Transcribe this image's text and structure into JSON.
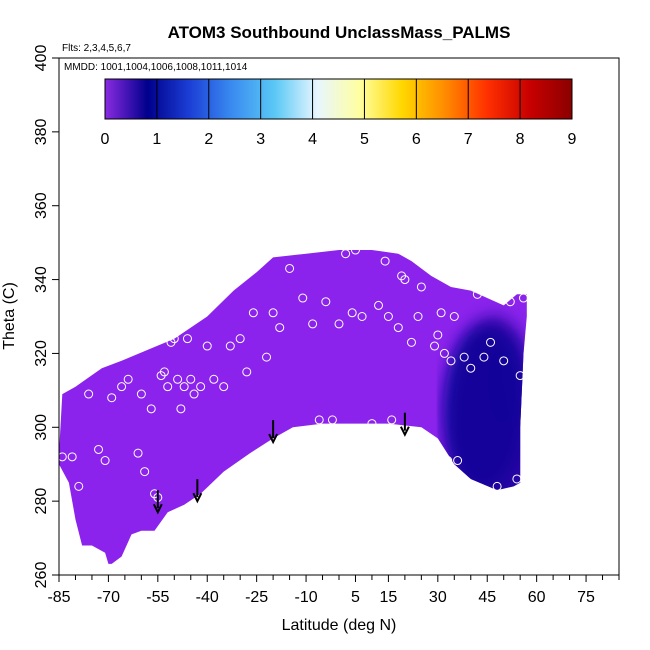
{
  "chart_data": {
    "type": "heatmap",
    "title": "ATOM3 Southbound UnclassMass_PALMS",
    "flights_note": "Flts: 2,3,4,5,6,7",
    "dates_note": "MMDD: 1001,1004,1006,1008,1011,1014",
    "xlabel": "Latitude (deg N)",
    "ylabel": "Theta (C)",
    "xlim": [
      -85,
      85
    ],
    "ylim": [
      260,
      400
    ],
    "x_ticks": [
      -85,
      -70,
      -55,
      -40,
      -25,
      -10,
      5,
      15,
      30,
      45,
      60,
      75
    ],
    "y_ticks": [
      260,
      280,
      300,
      320,
      340,
      360,
      380,
      400
    ],
    "colorbar": {
      "min": 0,
      "max": 9,
      "ticks": [
        0,
        1,
        2,
        3,
        4,
        5,
        6,
        7,
        8,
        9
      ],
      "colors": [
        "#8a2be2",
        "#00008b",
        "#1c3fd6",
        "#3a8cf0",
        "#5ac8f5",
        "#e8f6ff",
        "#ffffa0",
        "#ffd700",
        "#ff8c00",
        "#ff3000",
        "#c80000",
        "#8b0000"
      ]
    },
    "field_envelope": [
      [
        -85,
        293
      ],
      [
        -84,
        309
      ],
      [
        -80,
        311
      ],
      [
        -72,
        316
      ],
      [
        -66,
        318
      ],
      [
        -58,
        321
      ],
      [
        -50,
        324
      ],
      [
        -40,
        330
      ],
      [
        -32,
        337
      ],
      [
        -25,
        342
      ],
      [
        -20,
        346
      ],
      [
        -10,
        347
      ],
      [
        0,
        348
      ],
      [
        10,
        348
      ],
      [
        18,
        347
      ],
      [
        22,
        345
      ],
      [
        28,
        341
      ],
      [
        34,
        338
      ],
      [
        40,
        337
      ],
      [
        45,
        335
      ],
      [
        50,
        333
      ],
      [
        54,
        336
      ],
      [
        57,
        336
      ],
      [
        57,
        330
      ],
      [
        56,
        320
      ],
      [
        55,
        300
      ],
      [
        55,
        285
      ],
      [
        53,
        284
      ],
      [
        48,
        283
      ],
      [
        40,
        286
      ],
      [
        35,
        290
      ],
      [
        30,
        297
      ],
      [
        25,
        300
      ],
      [
        15,
        301
      ],
      [
        5,
        301
      ],
      [
        -5,
        301
      ],
      [
        -14,
        300
      ],
      [
        -20,
        297
      ],
      [
        -27,
        293
      ],
      [
        -35,
        288
      ],
      [
        -42,
        282
      ],
      [
        -47,
        279
      ],
      [
        -52,
        277
      ],
      [
        -56,
        272
      ],
      [
        -60,
        272
      ],
      [
        -63,
        271
      ],
      [
        -66,
        265
      ],
      [
        -69,
        263
      ],
      [
        -70,
        263
      ],
      [
        -71,
        266
      ],
      [
        -75,
        268
      ],
      [
        -78,
        268
      ],
      [
        -80,
        275
      ],
      [
        -82,
        285
      ],
      [
        -85,
        290
      ]
    ],
    "high_value_region": [
      {
        "x": 50,
        "y": 312,
        "value": 1.6,
        "rx": 5,
        "ry": 12
      },
      {
        "x": 44,
        "y": 305,
        "value": 1.0,
        "rx": 12,
        "ry": 22
      },
      {
        "x": 47,
        "y": 300,
        "value": 0.7,
        "rx": 14,
        "ry": 30
      }
    ],
    "observation_points": [
      [
        -84,
        292
      ],
      [
        -81,
        292
      ],
      [
        -79,
        284
      ],
      [
        -76,
        309
      ],
      [
        -73,
        294
      ],
      [
        -71,
        291
      ],
      [
        -69,
        308
      ],
      [
        -66,
        311
      ],
      [
        -64,
        313
      ],
      [
        -61,
        293
      ],
      [
        -60,
        309
      ],
      [
        -59,
        288
      ],
      [
        -57,
        305
      ],
      [
        -56,
        282
      ],
      [
        -55,
        281
      ],
      [
        -54,
        314
      ],
      [
        -53,
        315
      ],
      [
        -52,
        311
      ],
      [
        -51,
        323
      ],
      [
        -50,
        324
      ],
      [
        -49,
        313
      ],
      [
        -48,
        305
      ],
      [
        -47,
        311
      ],
      [
        -46,
        324
      ],
      [
        -45,
        313
      ],
      [
        -44,
        309
      ],
      [
        -42,
        311
      ],
      [
        -40,
        322
      ],
      [
        -38,
        313
      ],
      [
        -35,
        311
      ],
      [
        -33,
        322
      ],
      [
        -30,
        324
      ],
      [
        -28,
        315
      ],
      [
        -26,
        331
      ],
      [
        -24,
        293
      ],
      [
        -22,
        319
      ],
      [
        -20,
        331
      ],
      [
        -18,
        327
      ],
      [
        -15,
        343
      ],
      [
        -13,
        348
      ],
      [
        -11,
        335
      ],
      [
        -8,
        328
      ],
      [
        -6,
        302
      ],
      [
        -4,
        334
      ],
      [
        -2,
        302
      ],
      [
        0,
        328
      ],
      [
        2,
        347
      ],
      [
        4,
        331
      ],
      [
        5,
        348
      ],
      [
        7,
        330
      ],
      [
        10,
        301
      ],
      [
        12,
        333
      ],
      [
        14,
        345
      ],
      [
        15,
        330
      ],
      [
        16,
        302
      ],
      [
        18,
        327
      ],
      [
        19,
        341
      ],
      [
        20,
        340
      ],
      [
        22,
        323
      ],
      [
        24,
        330
      ],
      [
        25,
        338
      ],
      [
        27,
        296
      ],
      [
        29,
        322
      ],
      [
        30,
        325
      ],
      [
        31,
        331
      ],
      [
        32,
        320
      ],
      [
        33,
        291
      ],
      [
        34,
        318
      ],
      [
        35,
        330
      ],
      [
        36,
        291
      ],
      [
        38,
        319
      ],
      [
        40,
        316
      ],
      [
        42,
        336
      ],
      [
        44,
        319
      ],
      [
        46,
        323
      ],
      [
        48,
        284
      ],
      [
        50,
        318
      ],
      [
        52,
        334
      ],
      [
        54,
        286
      ],
      [
        55,
        314
      ],
      [
        56,
        335
      ]
    ],
    "arrows": [
      -55,
      -43,
      -20,
      20
    ],
    "arrow_base": [
      277,
      280,
      296,
      298
    ]
  }
}
